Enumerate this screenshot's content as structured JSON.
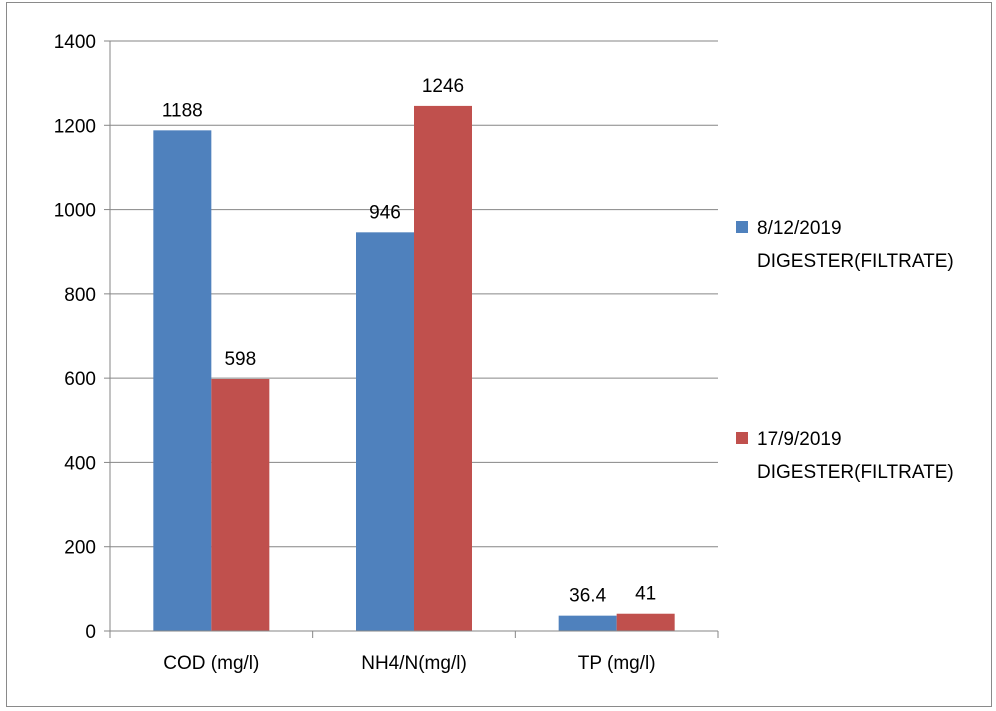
{
  "chart_data": {
    "type": "bar",
    "title": "",
    "xlabel": "",
    "ylabel": "",
    "categories": [
      "COD (mg/l)",
      "NH4/N(mg/l)",
      "TP (mg/l)"
    ],
    "series": [
      {
        "name": "8/12/2019 DIGESTER(FILTRATE)",
        "name_lines": [
          "8/12/2019",
          "DIGESTER(FILTRATE)"
        ],
        "color": "#4F81BD",
        "values": [
          1188,
          946,
          36.4
        ],
        "labels": [
          "1188",
          "946",
          "36.4"
        ]
      },
      {
        "name": "17/9/2019 DIGESTER(FILTRATE)",
        "name_lines": [
          "17/9/2019",
          "DIGESTER(FILTRATE)"
        ],
        "color": "#C0504D",
        "values": [
          598,
          1246,
          41
        ],
        "labels": [
          "598",
          "1246",
          "41"
        ]
      }
    ],
    "ylim": [
      0,
      1400
    ],
    "yticks": [
      0,
      200,
      400,
      600,
      800,
      1000,
      1200,
      1400
    ],
    "grid": true,
    "legend_position": "right"
  }
}
